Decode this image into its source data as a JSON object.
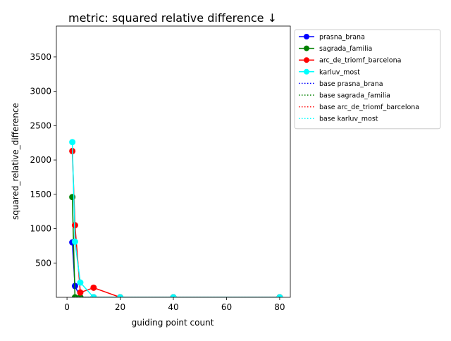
{
  "chart_data": {
    "type": "line",
    "title": "metric: squared relative difference ↓",
    "xlabel": "guiding point count",
    "ylabel": "squared_relative_difference",
    "xlim": [
      -4,
      84
    ],
    "ylim": [
      0,
      3950
    ],
    "x_ticks": [
      0,
      20,
      40,
      60,
      80
    ],
    "y_ticks": [
      500,
      1000,
      1500,
      2000,
      2500,
      3000,
      3500
    ],
    "legend_position": "outside-right",
    "grid": false,
    "x": [
      2,
      3,
      5,
      10,
      20,
      40,
      80
    ],
    "series": [
      {
        "name": "prasna_brana",
        "color": "#0000ff",
        "style": "solid-marker",
        "values": [
          800,
          165,
          0,
          0,
          0,
          0,
          0
        ]
      },
      {
        "name": "sagrada_familia",
        "color": "#008000",
        "style": "solid-marker",
        "values": [
          1460,
          0,
          0,
          0,
          0,
          0,
          0
        ]
      },
      {
        "name": "arc_de_triomf_barcelona",
        "color": "#ff0000",
        "style": "solid-marker",
        "values": [
          2130,
          1050,
          70,
          140,
          0,
          0,
          0
        ]
      },
      {
        "name": "karluv_most",
        "color": "#00ffff",
        "style": "solid-marker",
        "values": [
          2260,
          810,
          215,
          0,
          0,
          0,
          0
        ]
      },
      {
        "name": "base prasna_brana",
        "color": "#0000ff",
        "style": "dotted",
        "values": [
          0,
          0,
          0,
          0,
          0,
          0,
          0
        ]
      },
      {
        "name": "base sagrada_familia",
        "color": "#008000",
        "style": "dotted",
        "values": [
          0,
          0,
          0,
          0,
          0,
          0,
          0
        ]
      },
      {
        "name": "base arc_de_triomf_barcelona",
        "color": "#ff0000",
        "style": "dotted",
        "values": [
          0,
          0,
          0,
          0,
          0,
          0,
          0
        ]
      },
      {
        "name": "base karluv_most",
        "color": "#00ffff",
        "style": "dotted",
        "values": [
          0,
          0,
          0,
          0,
          0,
          0,
          0
        ]
      }
    ]
  }
}
